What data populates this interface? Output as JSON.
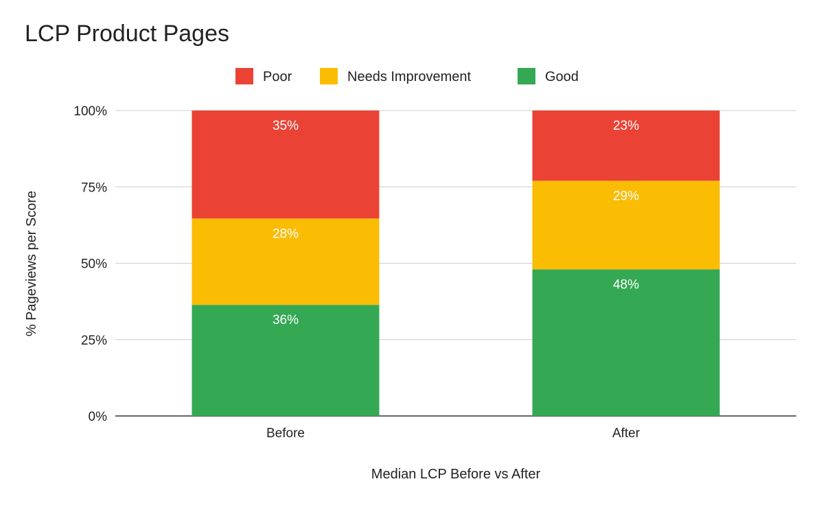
{
  "chart_data": {
    "type": "bar",
    "stacked": "percent",
    "title": "LCP Product Pages",
    "xlabel": "Median LCP Before vs After",
    "ylabel": "% Pageviews per Score",
    "categories": [
      "Before",
      "After"
    ],
    "series": [
      {
        "name": "Good",
        "color": "#34a853",
        "values": [
          36,
          48
        ]
      },
      {
        "name": "Needs Improvement",
        "color": "#fbbc04",
        "values": [
          28,
          29
        ]
      },
      {
        "name": "Poor",
        "color": "#ea4335",
        "values": [
          35,
          23
        ]
      }
    ],
    "legend_order": [
      "Poor",
      "Needs Improvement",
      "Good"
    ],
    "yticks": [
      "0%",
      "25%",
      "50%",
      "75%",
      "100%"
    ],
    "ylim": [
      0,
      100
    ],
    "grid": true,
    "legend_position": "top",
    "data_labels": true
  }
}
